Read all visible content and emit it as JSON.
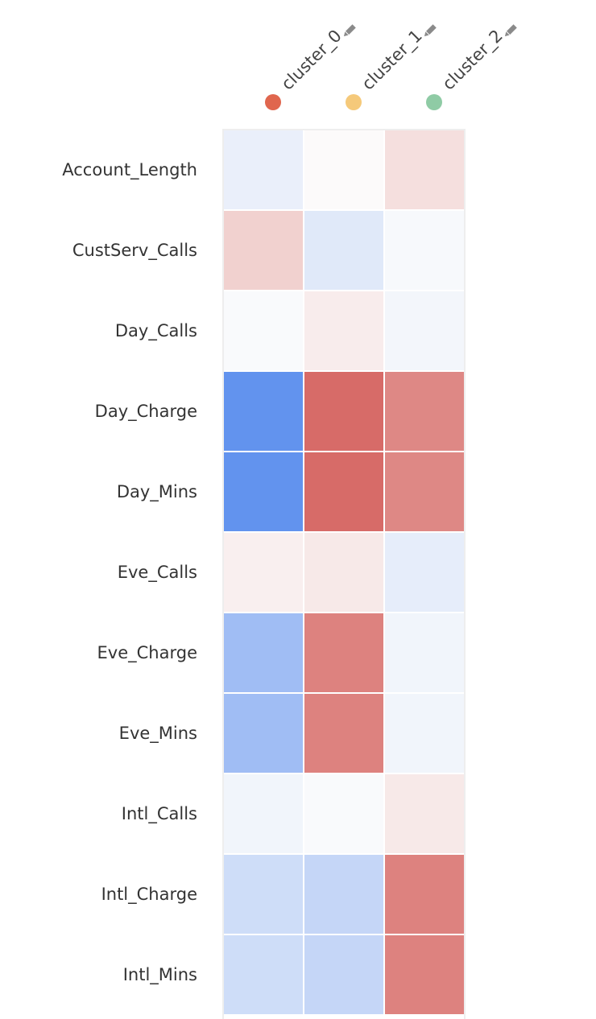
{
  "chart_data": {
    "type": "heatmap",
    "columns": [
      {
        "label": "cluster_0",
        "color": "#e0664e",
        "icon": "pencil-icon"
      },
      {
        "label": "cluster_1",
        "color": "#f5c97a",
        "icon": "pencil-icon"
      },
      {
        "label": "cluster_2",
        "color": "#8fcba5",
        "icon": "pencil-icon"
      }
    ],
    "rows": [
      "Account_Length",
      "CustServ_Calls",
      "Day_Calls",
      "Day_Charge",
      "Day_Mins",
      "Eve_Calls",
      "Eve_Charge",
      "Eve_Mins",
      "Intl_Calls",
      "Intl_Charge",
      "Intl_Mins"
    ],
    "values": [
      [
        -0.12,
        0.01,
        0.18
      ],
      [
        0.27,
        -0.18,
        -0.03
      ],
      [
        -0.02,
        0.1,
        -0.06
      ],
      [
        -1.0,
        0.9,
        0.72
      ],
      [
        -1.0,
        0.9,
        0.72
      ],
      [
        0.08,
        0.12,
        -0.14
      ],
      [
        -0.6,
        0.76,
        -0.07
      ],
      [
        -0.6,
        0.76,
        -0.07
      ],
      [
        -0.07,
        -0.02,
        0.12
      ],
      [
        -0.3,
        -0.36,
        0.76
      ],
      [
        -0.3,
        -0.36,
        0.76
      ]
    ],
    "scale": {
      "min": -1,
      "max": 1,
      "negative_color": "#6293ee",
      "neutral_color": "#fcfcfc",
      "positive_color": "#d35b57"
    },
    "grid": true,
    "legend": "top"
  }
}
